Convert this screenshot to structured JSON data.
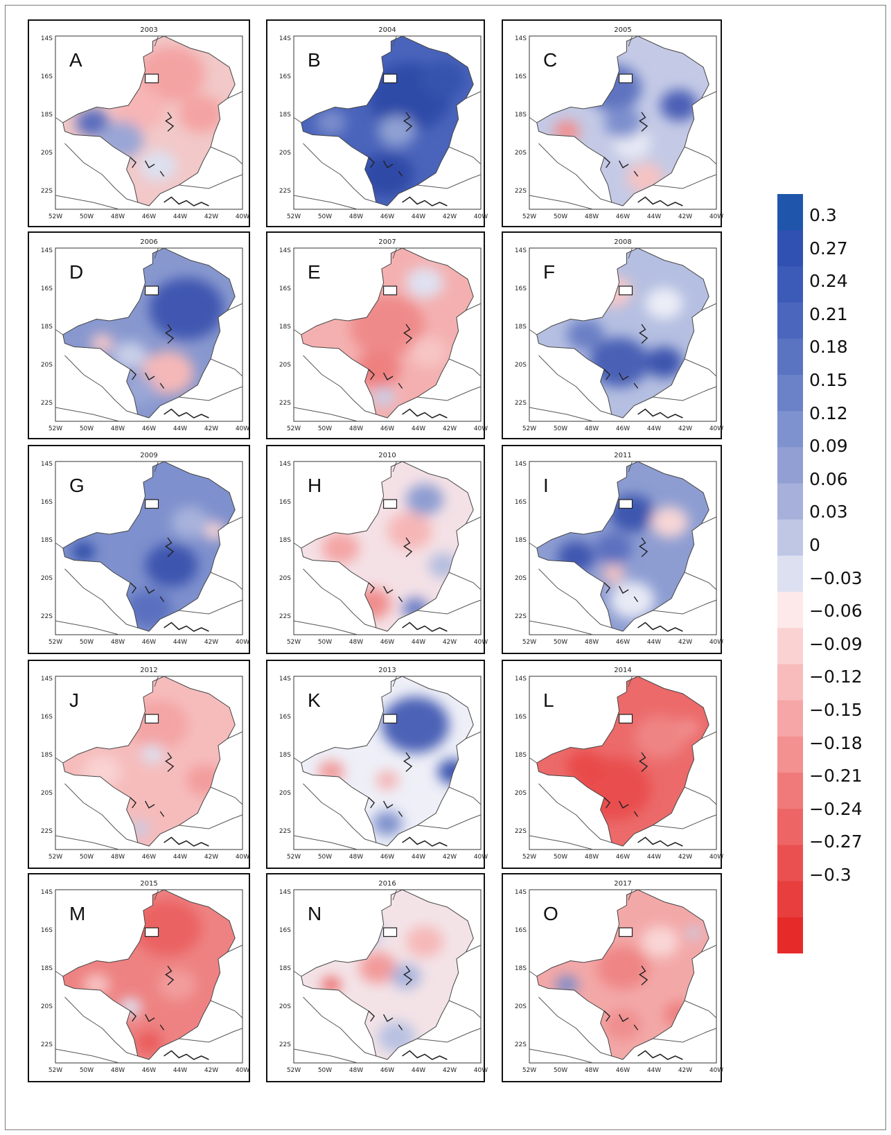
{
  "figure": {
    "colorbar": {
      "colors": [
        "#1f56ab",
        "#3050b2",
        "#3c5bb8",
        "#4a66bd",
        "#5a74c2",
        "#6b82c8",
        "#7d92ce",
        "#929fd3",
        "#a6b0db",
        "#c0c7e5",
        "#dde0f0",
        "#fde9e9",
        "#fad2d2",
        "#f8bcbc",
        "#f6a6a6",
        "#f39090",
        "#f07a7a",
        "#ed6565",
        "#eb5050",
        "#e83e3e",
        "#e62a2a"
      ],
      "labels": [
        "0.3",
        "0.27",
        "0.24",
        "0.21",
        "0.18",
        "0.15",
        "0.12",
        "0.09",
        "0.06",
        "0.03",
        "0",
        "−0.03",
        "−0.06",
        "−0.09",
        "−0.12",
        "−0.15",
        "−0.18",
        "−0.21",
        "−0.24",
        "−0.27",
        "−0.3"
      ]
    },
    "axes": {
      "lat_labels": [
        "14S",
        "16S",
        "18S",
        "20S",
        "22S"
      ],
      "lon_labels": [
        "52W",
        "50W",
        "48W",
        "46W",
        "44W",
        "42W",
        "40W"
      ]
    },
    "panels": [
      {
        "letter": "A",
        "year": "2003",
        "base": "#f2c8c8",
        "blobs": [
          [
            "#f4a3a3",
            0.62,
            0.22,
            0.18
          ],
          [
            "#f7b5b5",
            0.45,
            0.42,
            0.14
          ],
          [
            "#5a6dbd",
            0.2,
            0.5,
            0.09
          ],
          [
            "#9aa6d6",
            0.35,
            0.6,
            0.12
          ],
          [
            "#dde0f0",
            0.55,
            0.75,
            0.1
          ],
          [
            "#f4a3a3",
            0.78,
            0.45,
            0.12
          ]
        ]
      },
      {
        "letter": "B",
        "year": "2004",
        "base": "#4a64bb",
        "blobs": [
          [
            "#2e4ca8",
            0.62,
            0.35,
            0.22
          ],
          [
            "#7b8dcc",
            0.2,
            0.5,
            0.08
          ],
          [
            "#8fa0d3",
            0.55,
            0.55,
            0.1
          ],
          [
            "#2f4aa6",
            0.5,
            0.8,
            0.14
          ],
          [
            "#3452ad",
            0.8,
            0.25,
            0.12
          ]
        ]
      },
      {
        "letter": "C",
        "year": "2005",
        "base": "#c4cae6",
        "blobs": [
          [
            "#5e73c0",
            0.45,
            0.3,
            0.15
          ],
          [
            "#4b5fb6",
            0.8,
            0.4,
            0.1
          ],
          [
            "#f28f8f",
            0.2,
            0.55,
            0.07
          ],
          [
            "#e7e9f4",
            0.55,
            0.62,
            0.1
          ],
          [
            "#f6c3c3",
            0.62,
            0.82,
            0.1
          ],
          [
            "#7d8fce",
            0.5,
            0.5,
            0.1
          ]
        ]
      },
      {
        "letter": "D",
        "year": "2006",
        "base": "#8898cf",
        "blobs": [
          [
            "#3f57b0",
            0.7,
            0.35,
            0.2
          ],
          [
            "#f5b8b8",
            0.6,
            0.72,
            0.14
          ],
          [
            "#f7c9c9",
            0.25,
            0.55,
            0.06
          ],
          [
            "#c8cfe8",
            0.4,
            0.62,
            0.09
          ],
          [
            "#9aa7d7",
            0.45,
            0.82,
            0.09
          ]
        ]
      },
      {
        "letter": "E",
        "year": "2007",
        "base": "#f4b0b0",
        "blobs": [
          [
            "#ef8a8a",
            0.5,
            0.45,
            0.2
          ],
          [
            "#ee8080",
            0.45,
            0.7,
            0.12
          ],
          [
            "#dfe1f1",
            0.7,
            0.2,
            0.1
          ],
          [
            "#c8cfe8",
            0.48,
            0.86,
            0.06
          ],
          [
            "#f7c5c5",
            0.72,
            0.6,
            0.1
          ]
        ]
      },
      {
        "letter": "F",
        "year": "2008",
        "base": "#b5bfe1",
        "blobs": [
          [
            "#4a60b5",
            0.48,
            0.66,
            0.16
          ],
          [
            "#6b7fc5",
            0.3,
            0.5,
            0.1
          ],
          [
            "#f7c8c8",
            0.45,
            0.25,
            0.1
          ],
          [
            "#eceef7",
            0.72,
            0.32,
            0.1
          ],
          [
            "#3c54ae",
            0.72,
            0.66,
            0.1
          ]
        ]
      },
      {
        "letter": "G",
        "year": "2009",
        "base": "#7e90cd",
        "blobs": [
          [
            "#3c55af",
            0.62,
            0.6,
            0.14
          ],
          [
            "#2b49a6",
            0.15,
            0.52,
            0.06
          ],
          [
            "#5a6fbf",
            0.5,
            0.85,
            0.12
          ],
          [
            "#f7d3d3",
            0.85,
            0.4,
            0.06
          ],
          [
            "#a8b3dc",
            0.72,
            0.35,
            0.1
          ]
        ]
      },
      {
        "letter": "H",
        "year": "2010",
        "base": "#f4e1e6",
        "blobs": [
          [
            "#f08d8d",
            0.42,
            0.82,
            0.1
          ],
          [
            "#f4a5a5",
            0.25,
            0.5,
            0.1
          ],
          [
            "#f6b6b6",
            0.62,
            0.4,
            0.12
          ],
          [
            "#8d9dd2",
            0.7,
            0.22,
            0.1
          ],
          [
            "#6a7ec6",
            0.65,
            0.85,
            0.07
          ],
          [
            "#b3bddf",
            0.8,
            0.6,
            0.08
          ]
        ]
      },
      {
        "letter": "I",
        "year": "2011",
        "base": "#8d9dd2",
        "blobs": [
          [
            "#3d56af",
            0.55,
            0.3,
            0.12
          ],
          [
            "#3f56b0",
            0.25,
            0.55,
            0.1
          ],
          [
            "#f7d6d6",
            0.75,
            0.35,
            0.1
          ],
          [
            "#e8eaf5",
            0.55,
            0.8,
            0.12
          ],
          [
            "#f6c3c3",
            0.45,
            0.65,
            0.06
          ],
          [
            "#5b6fbf",
            0.45,
            0.5,
            0.1
          ]
        ]
      },
      {
        "letter": "J",
        "year": "2012",
        "base": "#f6bcbc",
        "blobs": [
          [
            "#f4a4a4",
            0.55,
            0.28,
            0.16
          ],
          [
            "#f39c9c",
            0.8,
            0.6,
            0.1
          ],
          [
            "#dce0f0",
            0.52,
            0.45,
            0.06
          ],
          [
            "#f9d3d3",
            0.25,
            0.55,
            0.1
          ],
          [
            "#c5cce7",
            0.45,
            0.88,
            0.05
          ]
        ]
      },
      {
        "letter": "K",
        "year": "2013",
        "base": "#eeeff7",
        "blobs": [
          [
            "#4b62b6",
            0.65,
            0.28,
            0.18
          ],
          [
            "#3a53ae",
            0.85,
            0.55,
            0.08
          ],
          [
            "#f29a9a",
            0.2,
            0.55,
            0.07
          ],
          [
            "#f5b2b2",
            0.5,
            0.6,
            0.06
          ],
          [
            "#8092cd",
            0.5,
            0.85,
            0.08
          ]
        ]
      },
      {
        "letter": "L",
        "year": "2014",
        "base": "#ec6a6a",
        "blobs": [
          [
            "#e94d4d",
            0.45,
            0.65,
            0.2
          ],
          [
            "#ef8484",
            0.7,
            0.35,
            0.14
          ],
          [
            "#e94a4a",
            0.3,
            0.52,
            0.1
          ],
          [
            "#f08f8f",
            0.85,
            0.3,
            0.06
          ]
        ]
      },
      {
        "letter": "M",
        "year": "2015",
        "base": "#ee8282",
        "blobs": [
          [
            "#eb6262",
            0.6,
            0.22,
            0.18
          ],
          [
            "#dfe2f1",
            0.4,
            0.68,
            0.06
          ],
          [
            "#f7c5c5",
            0.22,
            0.55,
            0.07
          ],
          [
            "#ea5a5a",
            0.5,
            0.88,
            0.07
          ],
          [
            "#f29d9d",
            0.65,
            0.55,
            0.1
          ]
        ]
      },
      {
        "letter": "N",
        "year": "2016",
        "base": "#f3e3e7",
        "blobs": [
          [
            "#f39a9a",
            0.45,
            0.45,
            0.1
          ],
          [
            "#eb6262",
            0.2,
            0.55,
            0.05
          ],
          [
            "#a8b3dc",
            0.6,
            0.5,
            0.08
          ],
          [
            "#b8c1e1",
            0.55,
            0.85,
            0.1
          ],
          [
            "#f6b8b8",
            0.7,
            0.3,
            0.1
          ],
          [
            "#c5cce7",
            0.4,
            0.25,
            0.08
          ]
        ]
      },
      {
        "letter": "O",
        "year": "2017",
        "base": "#f3a8a8",
        "blobs": [
          [
            "#ef8585",
            0.5,
            0.45,
            0.14
          ],
          [
            "#7a8ccb",
            0.2,
            0.55,
            0.06
          ],
          [
            "#f9d6d6",
            0.7,
            0.3,
            0.1
          ],
          [
            "#ee7f7f",
            0.8,
            0.72,
            0.08
          ],
          [
            "#f08e8e",
            0.5,
            0.78,
            0.1
          ],
          [
            "#c8cfe8",
            0.88,
            0.25,
            0.04
          ]
        ]
      }
    ]
  }
}
